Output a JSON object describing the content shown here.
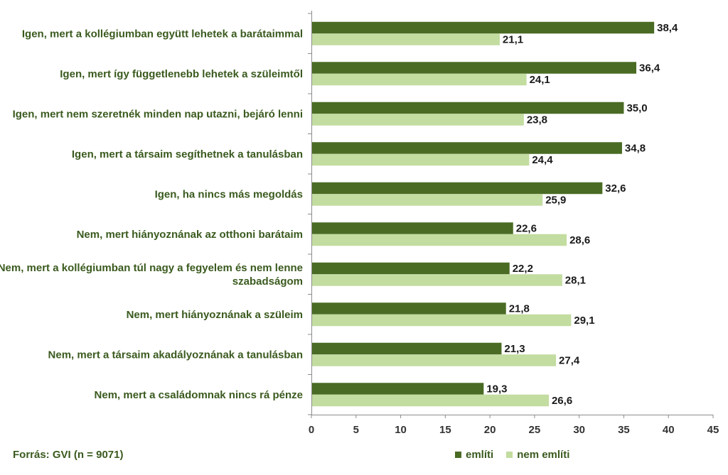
{
  "chart_data": {
    "type": "bar",
    "orientation": "horizontal",
    "categories": [
      [
        "Igen, mert a kollégiumban együtt lehetek a barátaimmal"
      ],
      [
        "Igen, mert így függetlenebb lehetek a szüleimtől"
      ],
      [
        "Igen, mert nem szeretnék minden nap utazni, bejáró lenni"
      ],
      [
        "Igen, mert a társaim segíthetnek a tanulásban"
      ],
      [
        "Igen, ha nincs más megoldás"
      ],
      [
        "Nem, mert hiányoznának az otthoni barátaim"
      ],
      [
        "Nem, mert a kollégiumban túl nagy a fegyelem és nem lenne",
        "szabadságom"
      ],
      [
        "Nem, mert hiányoznának a szüleim"
      ],
      [
        "Nem, mert a társaim akadályoznának a tanulásban"
      ],
      [
        "Nem, mert a családomnak nincs rá pénze"
      ]
    ],
    "series": [
      {
        "name": "említi",
        "color": "#4a6b24",
        "values": [
          38.4,
          36.4,
          35.0,
          34.8,
          32.6,
          22.6,
          22.2,
          21.8,
          21.3,
          19.3
        ],
        "labels": [
          "38,4",
          "36,4",
          "35,0",
          "34,8",
          "32,6",
          "22,6",
          "22,2",
          "21,8",
          "21,3",
          "19,3"
        ]
      },
      {
        "name": "nem említi",
        "color": "#c3dca0",
        "values": [
          21.1,
          24.1,
          23.8,
          24.4,
          25.9,
          28.6,
          28.1,
          29.1,
          27.4,
          26.6
        ],
        "labels": [
          "21,1",
          "24,1",
          "23,8",
          "24,4",
          "25,9",
          "28,6",
          "28,1",
          "29,1",
          "27,4",
          "26,6"
        ]
      }
    ],
    "xlim": [
      0,
      45
    ],
    "xticks": [
      0,
      5,
      10,
      15,
      20,
      25,
      30,
      35,
      40,
      45
    ],
    "legend_position": "bottom-right",
    "grid": false
  },
  "source": "Forrás: GVI (n = 9071)"
}
